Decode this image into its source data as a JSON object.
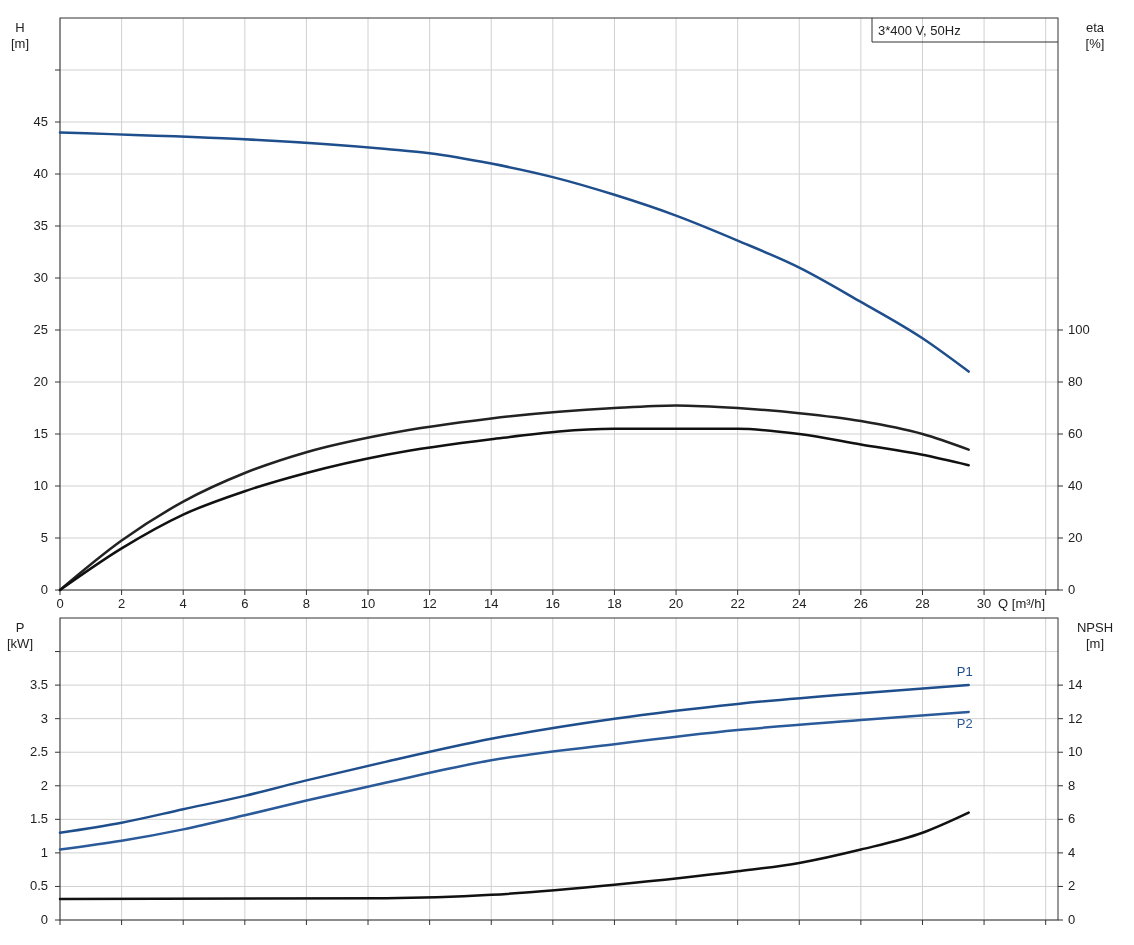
{
  "chart_data": [
    {
      "type": "line",
      "title": "3*400 V, 50Hz",
      "xlabel": "Q [m³/h]",
      "ylabel": "H\n[m]",
      "y2label": "eta\n[%]",
      "grid": true,
      "xlim": [
        0,
        32.4
      ],
      "xticks": [
        0,
        2,
        4,
        6,
        8,
        10,
        12,
        14,
        16,
        18,
        20,
        22,
        24,
        26,
        28,
        30,
        {
          "value": 32,
          "label": null
        }
      ],
      "ylim": [
        0,
        55
      ],
      "yticks": [
        0,
        5,
        10,
        15,
        20,
        25,
        30,
        35,
        40,
        45,
        {
          "value": 50,
          "label": null
        }
      ],
      "y2lim": [
        0,
        220
      ],
      "y2ticks": [
        0,
        20,
        40,
        60,
        80,
        100
      ],
      "series": [
        {
          "color": "#1f4e8c",
          "x": [
            0,
            10.6,
            12,
            14,
            16,
            18,
            20,
            22,
            24,
            26,
            28,
            29.5
          ],
          "values": [
            44,
            42.4,
            42,
            41,
            39.7,
            38,
            36,
            33.6,
            31,
            27.7,
            24.2,
            21
          ]
        },
        {
          "color": "#222222",
          "axis": "y2",
          "x": [
            0,
            2,
            4,
            6,
            8,
            10.6,
            14,
            18,
            20,
            22,
            24,
            26,
            28,
            29.5
          ],
          "values": [
            0,
            19,
            34,
            45,
            53,
            60,
            66,
            70,
            71,
            70,
            68,
            65,
            60,
            54
          ]
        },
        {
          "color": "#111111",
          "axis": "y2",
          "x": [
            0,
            2,
            4,
            6,
            8,
            10.6,
            14,
            18,
            20,
            22,
            24,
            26,
            28,
            29.5
          ],
          "values": [
            0,
            16,
            29,
            38,
            45,
            52,
            58,
            62,
            62,
            62,
            60,
            56,
            52,
            48
          ]
        }
      ]
    },
    {
      "type": "line",
      "ylabel": "P\n[kW]",
      "y2label": "NPSH\n[m]",
      "grid": true,
      "tick_labels": "y",
      "xlim": [
        0,
        32.4
      ],
      "xticks": [
        0,
        2,
        4,
        6,
        8,
        10,
        12,
        14,
        16,
        18,
        20,
        22,
        24,
        26,
        28,
        30,
        32
      ],
      "ylim": [
        0,
        4.5
      ],
      "yticks": [
        0,
        0.5,
        1,
        1.5,
        2,
        2.5,
        3,
        3.5,
        {
          "value": 4,
          "label": null
        }
      ],
      "y2lim": [
        0,
        18
      ],
      "y2ticks": [
        0,
        2,
        4,
        6,
        8,
        10,
        12,
        14
      ],
      "series": [
        {
          "name": "P1",
          "color": "#1f4e8c",
          "x": [
            0,
            2,
            4,
            6,
            8,
            10.6,
            14,
            18,
            22,
            26,
            29.5
          ],
          "values": [
            1.3,
            1.45,
            1.65,
            1.85,
            2.08,
            2.36,
            2.7,
            3.0,
            3.22,
            3.38,
            3.5
          ]
        },
        {
          "name": "P2",
          "color": "#2a5a9a",
          "x": [
            0,
            2,
            4,
            6,
            8,
            10.6,
            14,
            18,
            22,
            26,
            29.5
          ],
          "values": [
            1.05,
            1.18,
            1.35,
            1.56,
            1.78,
            2.05,
            2.38,
            2.62,
            2.83,
            2.98,
            3.1
          ]
        },
        {
          "color": "#111111",
          "axis": "y2",
          "x": [
            0,
            10.6,
            14,
            18,
            22,
            24,
            26,
            28,
            29.5
          ],
          "values": [
            1.25,
            1.3,
            1.5,
            2.1,
            2.9,
            3.4,
            4.2,
            5.2,
            6.4
          ]
        }
      ]
    }
  ]
}
